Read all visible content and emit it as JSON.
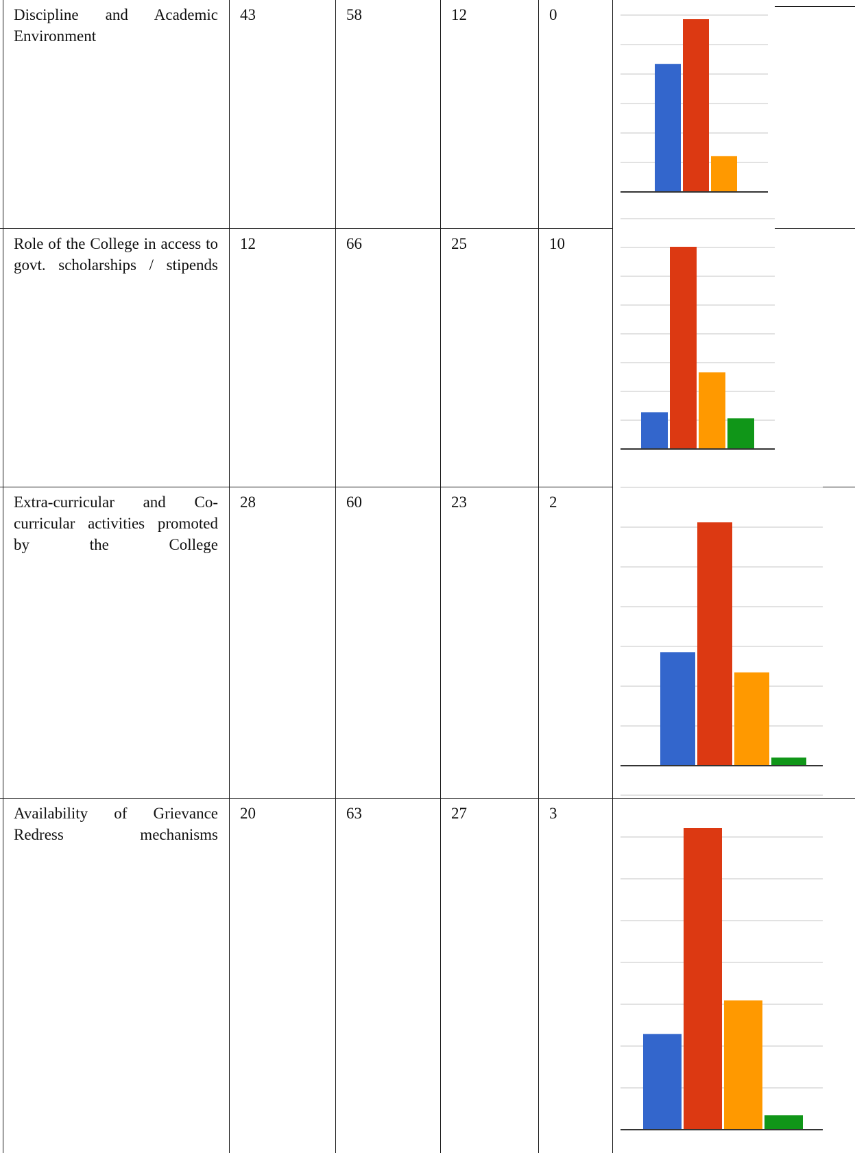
{
  "colors": {
    "series": [
      "#3366cc",
      "#dc3912",
      "#ff9900",
      "#109618"
    ],
    "grid": "#d9d9d9",
    "axis": "#333333"
  },
  "rows": [
    {
      "label": "Discipline and Academic Environment",
      "values": [
        "43",
        "58",
        "12",
        "0"
      ]
    },
    {
      "label": "Role of the College in access to govt. scholarships / stipends",
      "values": [
        "12",
        "66",
        "25",
        "10"
      ]
    },
    {
      "label": "Extra-curricular and Co-curricular activities promoted by the College",
      "values": [
        "28",
        "60",
        "23",
        "2"
      ]
    },
    {
      "label": "Availability of Grievance Redress mechanisms",
      "values": [
        "20",
        "63",
        "27",
        "3"
      ]
    }
  ],
  "chart_data": [
    {
      "type": "bar",
      "values": [
        43,
        58,
        12,
        0
      ]
    },
    {
      "type": "bar",
      "values": [
        12,
        66,
        25,
        10
      ]
    },
    {
      "type": "bar",
      "values": [
        28,
        60,
        23,
        2
      ]
    },
    {
      "type": "bar",
      "values": [
        20,
        63,
        27,
        3
      ]
    }
  ]
}
